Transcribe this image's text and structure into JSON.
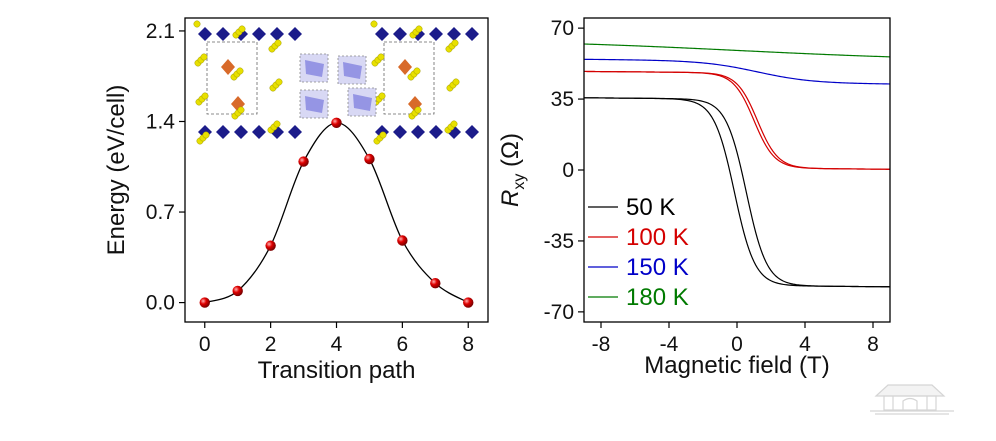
{
  "chart_data": [
    {
      "type": "scatter",
      "xlabel": "Transition path",
      "ylabel": "Energy (eV/cell)",
      "xlim": [
        -0.6,
        8.6
      ],
      "ylim": [
        -0.15,
        2.2
      ],
      "xticks": [
        "0",
        "2",
        "4",
        "6",
        "8"
      ],
      "yticks": [
        "0.0",
        "0.7",
        "1.4",
        "2.1"
      ],
      "x": [
        0,
        1,
        2,
        3,
        4,
        5,
        6,
        7,
        8
      ],
      "y": [
        0.0,
        0.09,
        0.44,
        1.09,
        1.39,
        1.11,
        0.48,
        0.15,
        0.0
      ],
      "fit_line": true,
      "marker_color": "#e00000",
      "line_color": "#000000",
      "inset": "crystal structure images (initial and final states) with octahedra"
    },
    {
      "type": "line",
      "xlabel": "Magnetic field (T)",
      "ylabel_main": "R",
      "ylabel_sub": "xy",
      "ylabel_unit": " (Ω)",
      "xlim": [
        -9,
        9
      ],
      "ylim": [
        -75,
        75
      ],
      "xticks": [
        "-8",
        "-4",
        "0",
        "4",
        "8"
      ],
      "yticks": [
        "70",
        "35",
        "0",
        "-35",
        "-70"
      ],
      "legend_position": "lower-left",
      "series": [
        {
          "name": "50 K",
          "color": "#000000",
          "low": -57,
          "high": 35,
          "center": 0.2,
          "width": 1.2,
          "hysteresis": 0.35
        },
        {
          "name": "100 K",
          "color": "#d40000",
          "low": 1,
          "high": 48,
          "center": 1.1,
          "width": 1.2,
          "hysteresis": 0.1
        },
        {
          "name": "150 K",
          "color": "#0000c8",
          "low": 43,
          "high": 54,
          "center": 1.2,
          "width": 3.2,
          "hysteresis": 0
        },
        {
          "name": "180 K",
          "color": "#007a00",
          "low": 55,
          "high": 63,
          "center": 0,
          "width": 12,
          "hysteresis": 0
        }
      ]
    }
  ]
}
